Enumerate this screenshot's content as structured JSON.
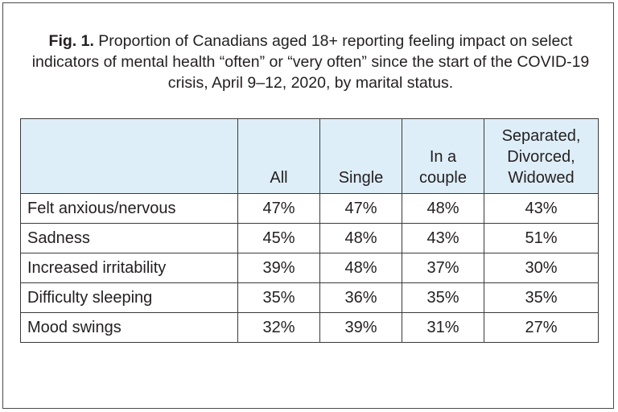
{
  "caption": {
    "fig_label": "Fig. 1.",
    "text": "Proportion of Canadians aged 18+ reporting feeling impact on select indicators of mental health “often” or “very often” since the start of the COVID-19 crisis, April 9–12, 2020, by marital status."
  },
  "chart_data": {
    "type": "table",
    "title": "Fig. 1. Proportion of Canadians aged 18+ reporting feeling impact on select indicators of mental health “often” or “very often” since the start of the COVID-19 crisis, April 9–12, 2020, by marital status.",
    "columns": [
      "",
      "All",
      "Single",
      "In a\ncouple",
      "Separated,\nDivorced,\nWidowed"
    ],
    "rows": [
      {
        "label": "Felt anxious/nervous",
        "values": [
          "47%",
          "47%",
          "48%",
          "43%"
        ]
      },
      {
        "label": "Sadness",
        "values": [
          "45%",
          "48%",
          "43%",
          "51%"
        ]
      },
      {
        "label": "Increased irritability",
        "values": [
          "39%",
          "48%",
          "37%",
          "30%"
        ]
      },
      {
        "label": "Difficulty sleeping",
        "values": [
          "35%",
          "36%",
          "35%",
          "35%"
        ]
      },
      {
        "label": "Mood swings",
        "values": [
          "32%",
          "39%",
          "31%",
          "27%"
        ]
      }
    ]
  },
  "colors": {
    "header_background": "#deeef8",
    "border": "#3a3a3a",
    "text": "#231f20"
  }
}
